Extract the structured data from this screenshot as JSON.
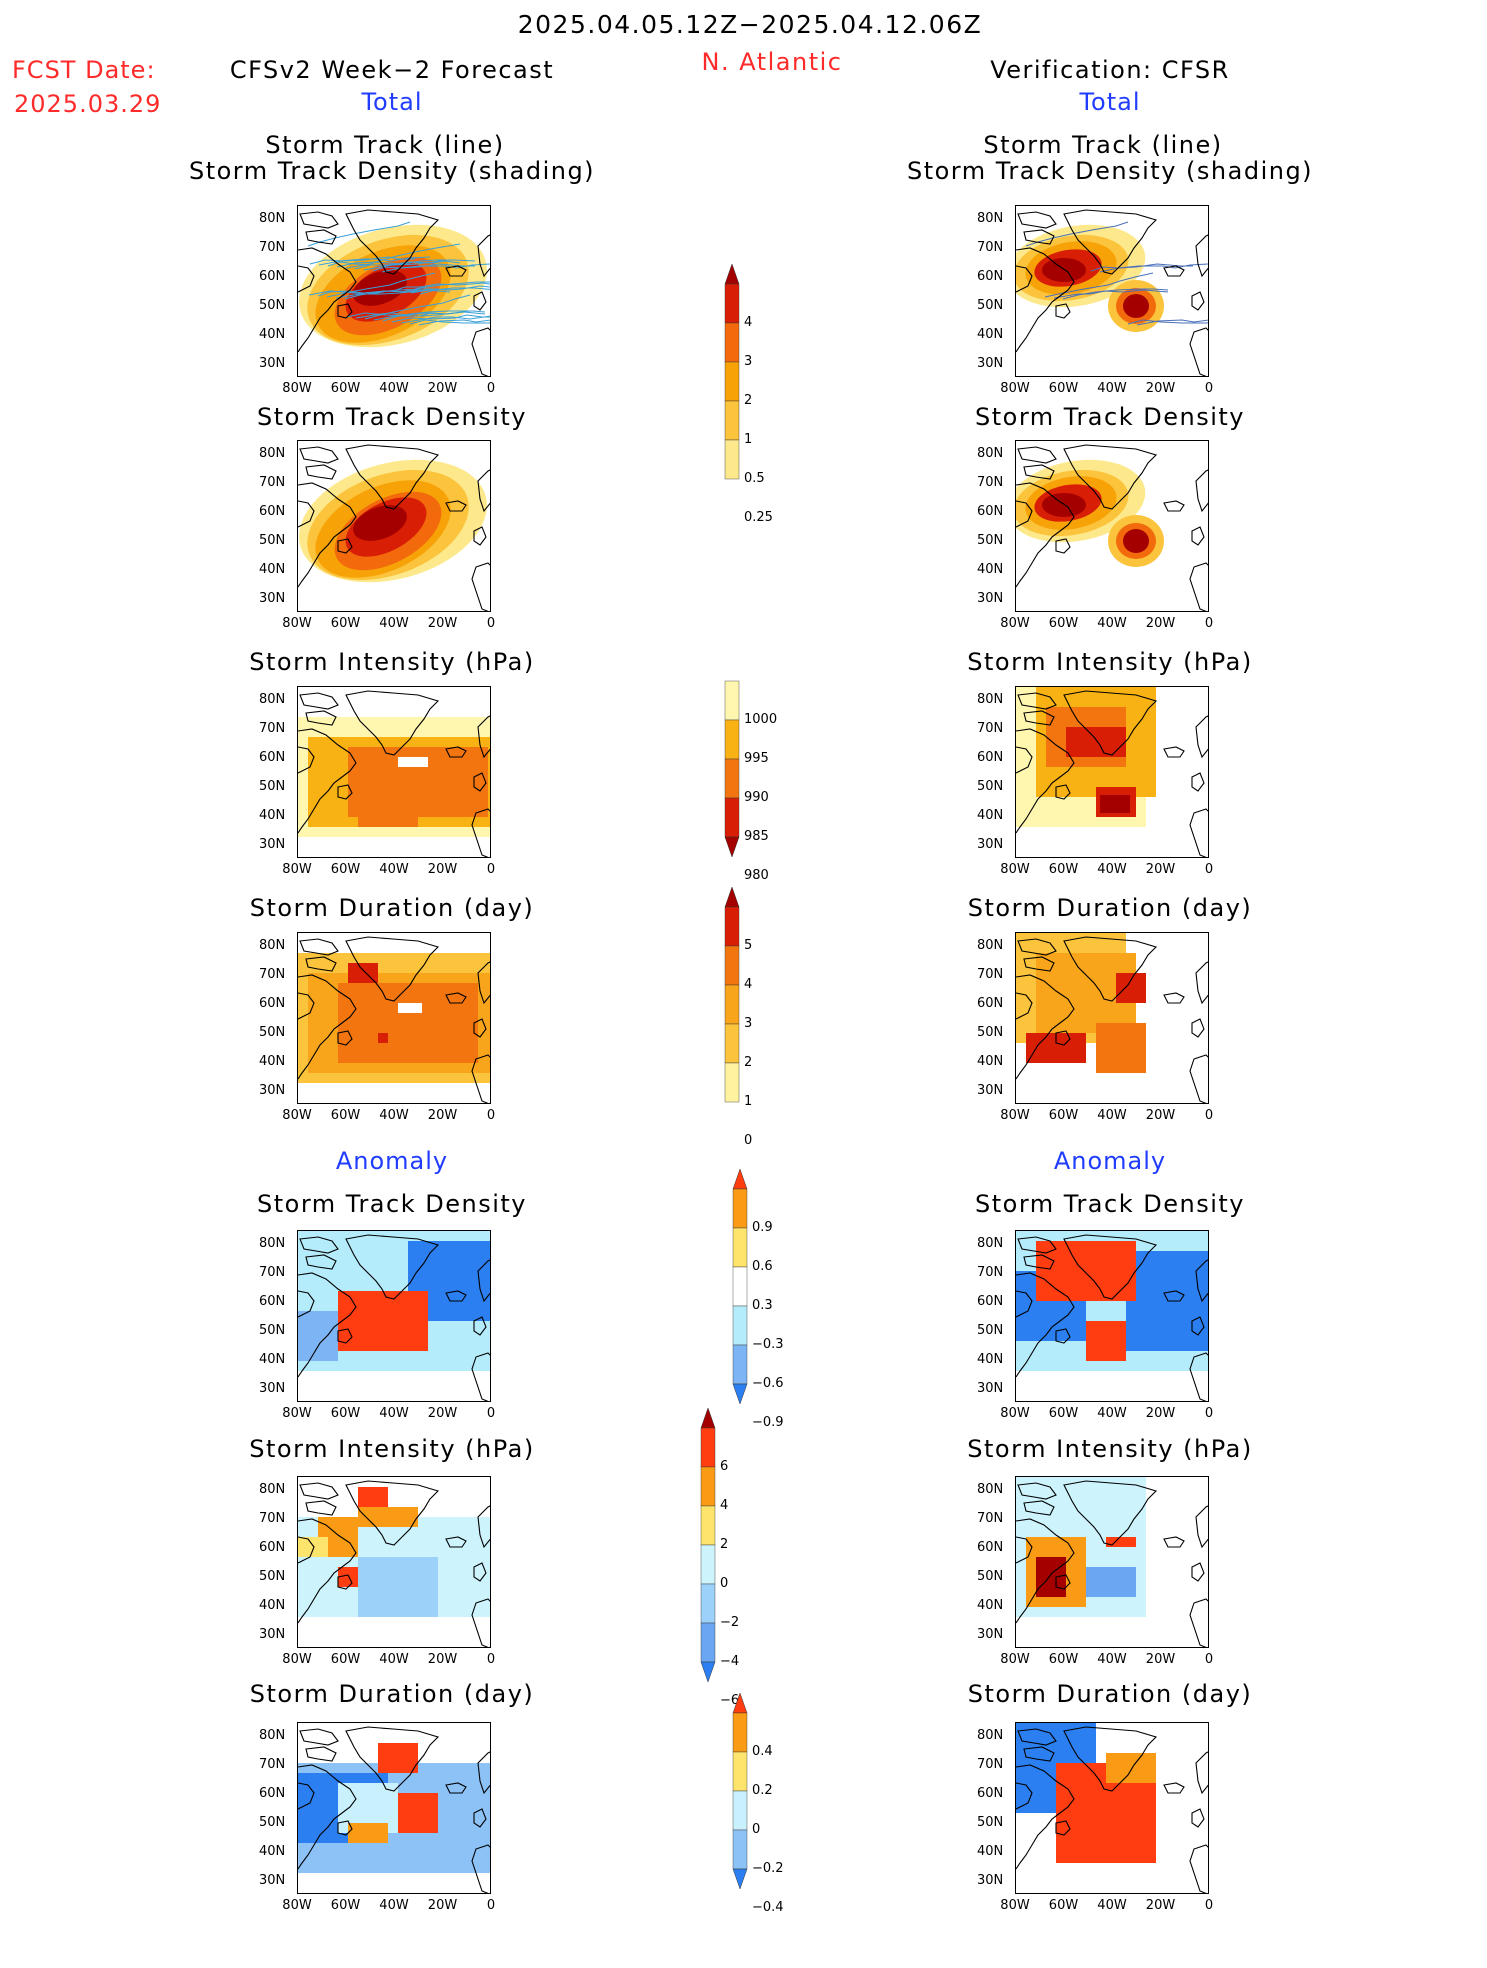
{
  "header": {
    "period": "2025.04.05.12Z−2025.04.12.06Z",
    "region": "N. Atlantic",
    "fcst_label": "FCST Date:",
    "fcst_date": "2025.03.29",
    "left_title": "CFSv2 Week−2 Forecast",
    "right_title": "Verification: CFSR",
    "left_section_total": "Total",
    "right_section_total": "Total",
    "left_section_anomaly": "Anomaly",
    "right_section_anomaly": "Anomaly"
  },
  "panel_titles": {
    "track_line": "Storm Track (line)",
    "track_shading": "Storm Track Density (shading)",
    "density": "Storm Track Density",
    "intensity": "Storm Intensity (hPa)",
    "duration": "Storm Duration (day)"
  },
  "axes": {
    "lat_labels": [
      "80N",
      "70N",
      "60N",
      "50N",
      "40N",
      "30N"
    ],
    "lon_labels": [
      "80W",
      "60W",
      "40W",
      "20W",
      "0"
    ]
  },
  "colorbars": {
    "density": {
      "labels": [
        "4",
        "3",
        "2",
        "1",
        "0.5",
        "0.25"
      ],
      "colors": [
        "#a50000",
        "#d81e05",
        "#f26a0c",
        "#f7a308",
        "#fbc43c",
        "#fde98c"
      ]
    },
    "intensity": {
      "labels": [
        "1000",
        "995",
        "990",
        "985",
        "980"
      ],
      "colors": [
        "#fff7b0",
        "#f9b214",
        "#f2750f",
        "#d81e05",
        "#a50000"
      ]
    },
    "duration": {
      "labels": [
        "5",
        "4",
        "3",
        "2",
        "1",
        "0"
      ],
      "colors": [
        "#a50000",
        "#d81e05",
        "#f2750f",
        "#f9a51c",
        "#fbc43c",
        "#fff3a0"
      ]
    },
    "anom_density": {
      "labels": [
        "0.9",
        "0.6",
        "0.3",
        "−0.3",
        "−0.6",
        "−0.9"
      ],
      "colors": [
        "#ff3d10",
        "#f99b15",
        "#fde46c",
        "#ffffff",
        "#b4ecfb",
        "#7cb4f4",
        "#2b7ff0"
      ]
    },
    "anom_intensity": {
      "labels": [
        "6",
        "4",
        "2",
        "0",
        "−2",
        "−4",
        "−6"
      ],
      "colors": [
        "#a50000",
        "#ff3d10",
        "#f99b15",
        "#fde46c",
        "#cdf3fd",
        "#9cd2fa",
        "#6aa6f2",
        "#2b7ff0"
      ]
    },
    "anom_duration": {
      "labels": [
        "0.4",
        "0.2",
        "0",
        "−0.2",
        "−0.4"
      ],
      "colors": [
        "#ff3d10",
        "#f99b15",
        "#fde46c",
        "#c8f0fd",
        "#8cc2f6",
        "#2b7ff0"
      ]
    }
  },
  "palette": {
    "ocean": "#ffffff",
    "land_outline": "#000000",
    "track_line_left": "#3aa0d8",
    "track_line_right": "#4a6fb8"
  }
}
